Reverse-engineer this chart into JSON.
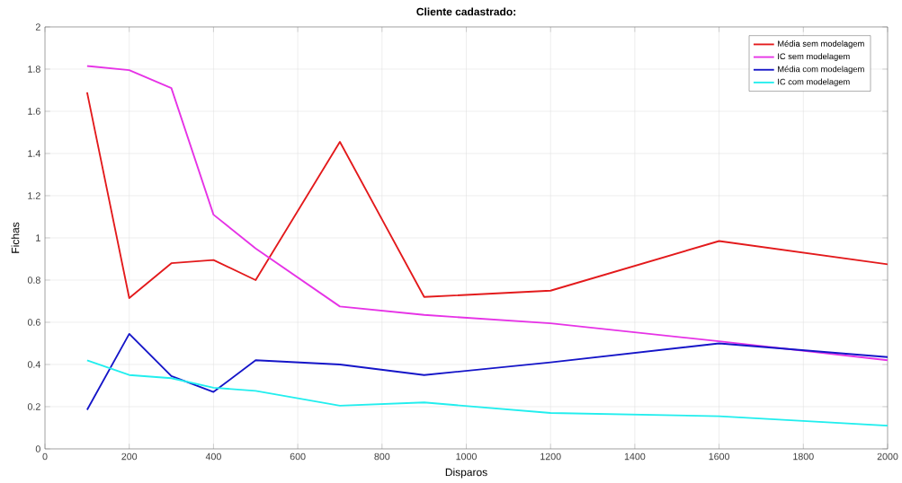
{
  "chart_data": {
    "type": "line",
    "title": "Cliente cadastrado:",
    "xlabel": "Disparos",
    "ylabel": "Fichas",
    "x": [
      100,
      200,
      300,
      400,
      500,
      700,
      900,
      1200,
      1600,
      2000
    ],
    "series": [
      {
        "name": "Média sem modelagem",
        "color": "#e31a1c",
        "values": [
          1.69,
          0.715,
          0.88,
          0.895,
          0.8,
          1.455,
          0.72,
          0.75,
          0.985,
          0.875
        ]
      },
      {
        "name": "IC sem modelagem",
        "color": "#e633e6",
        "values": [
          1.815,
          1.795,
          1.71,
          1.11,
          0.95,
          0.675,
          0.635,
          0.595,
          0.51,
          0.42
        ]
      },
      {
        "name": "Média com modelagem",
        "color": "#1515c8",
        "values": [
          0.185,
          0.545,
          0.345,
          0.27,
          0.42,
          0.4,
          0.35,
          0.41,
          0.5,
          0.435
        ]
      },
      {
        "name": "IC com modelagem",
        "color": "#22eeee",
        "values": [
          0.42,
          0.35,
          0.335,
          0.29,
          0.275,
          0.205,
          0.22,
          0.17,
          0.155,
          0.11
        ]
      }
    ],
    "xlim": [
      0,
      2000
    ],
    "xticks": [
      0,
      200,
      400,
      600,
      800,
      1000,
      1200,
      1400,
      1600,
      1800,
      2000
    ],
    "ylim": [
      0,
      2
    ],
    "yticks": [
      0,
      0.2,
      0.4,
      0.6,
      0.8,
      1,
      1.2,
      1.4,
      1.6,
      1.8,
      2
    ],
    "grid": true,
    "legend": "top right",
    "marker": "none",
    "line_style": "solid"
  }
}
